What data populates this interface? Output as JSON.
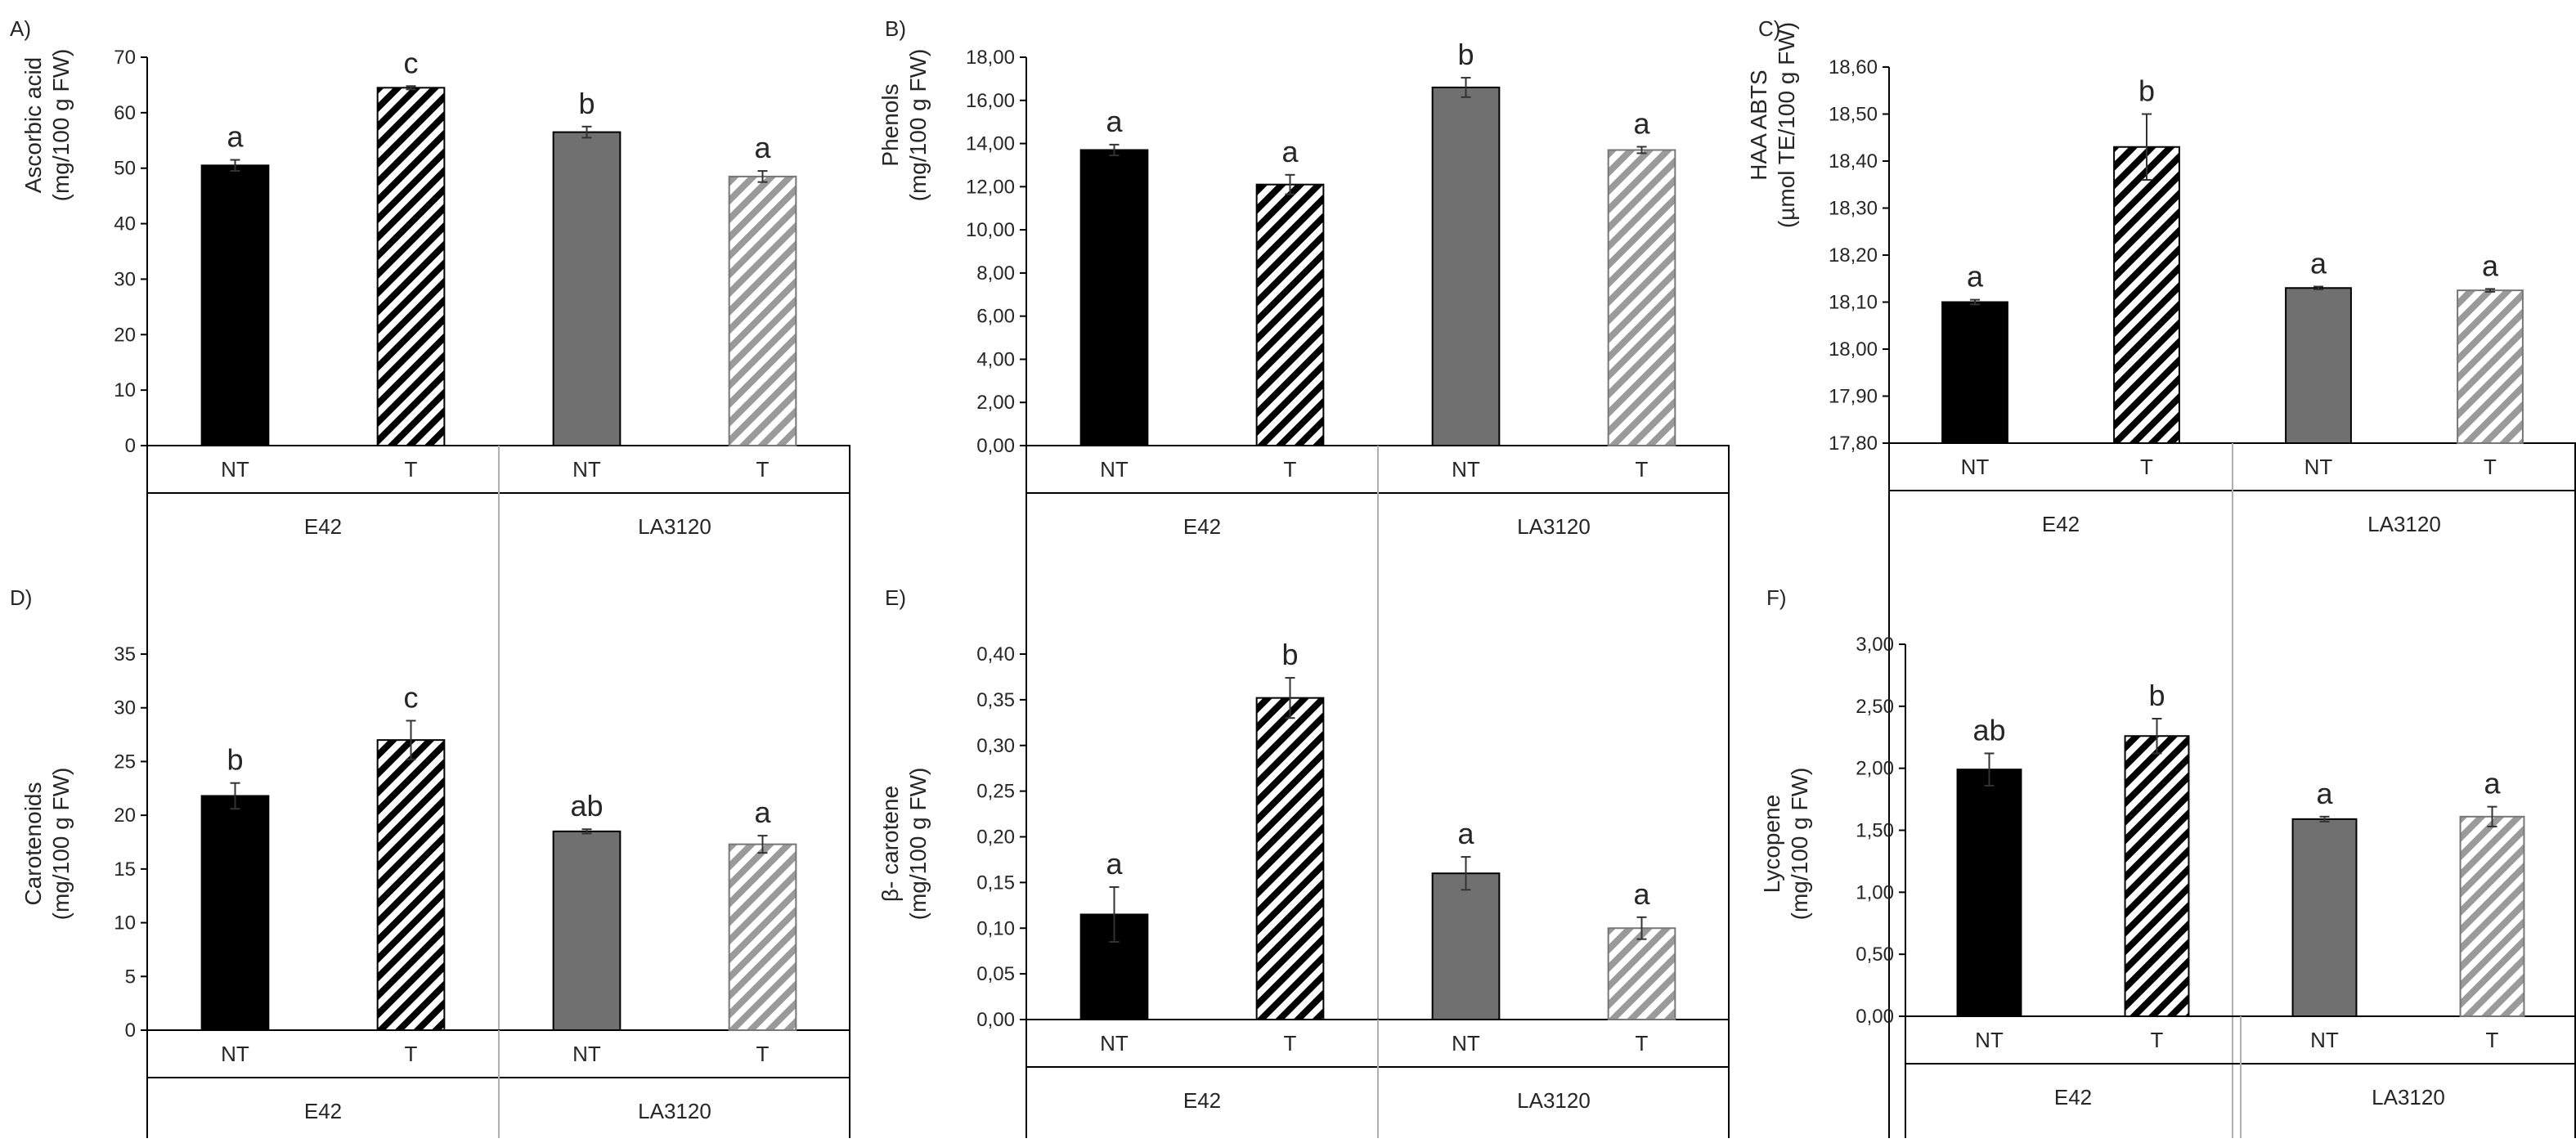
{
  "colors": {
    "e42_nt": "#000000",
    "e42_t_stripe": "#000000",
    "la_nt": "#707070",
    "la_t_stripe": "#9a9a9a",
    "axis": "#808080",
    "border": "#000000",
    "background": "#ffffff"
  },
  "chart_data": [
    {
      "panel": "A)",
      "type": "bar",
      "ylabel_lines": [
        "Ascorbic acid",
        "(mg/100 g FW)"
      ],
      "ylim": [
        0,
        70
      ],
      "yticks": [
        "0",
        "10",
        "20",
        "30",
        "40",
        "50",
        "60",
        "70"
      ],
      "groups": [
        "E42",
        "LA3120"
      ],
      "categories": [
        "NT",
        "T",
        "NT",
        "T"
      ],
      "values": [
        50.5,
        64.5,
        56.5,
        48.5
      ],
      "errors": [
        1.0,
        0.3,
        1.0,
        1.0
      ],
      "letters": [
        "a",
        "c",
        "b",
        "a"
      ]
    },
    {
      "panel": "B)",
      "type": "bar",
      "ylabel_lines": [
        "Phenols",
        "(mg/100 g FW)"
      ],
      "ylim": [
        0,
        18
      ],
      "yticks": [
        "0,00",
        "2,00",
        "4,00",
        "6,00",
        "8,00",
        "10,00",
        "12,00",
        "14,00",
        "16,00",
        "18,00"
      ],
      "groups": [
        "E42",
        "LA3120"
      ],
      "categories": [
        "NT",
        "T",
        "NT",
        "T"
      ],
      "values": [
        13.7,
        12.1,
        16.6,
        13.7
      ],
      "errors": [
        0.25,
        0.45,
        0.45,
        0.15
      ],
      "letters": [
        "a",
        "a",
        "b",
        "a"
      ]
    },
    {
      "panel": "C)",
      "type": "bar",
      "ylabel_lines": [
        "HAA ABTS",
        "(µmol TE/100 g FW)"
      ],
      "ylim": [
        17.8,
        18.6
      ],
      "yticks": [
        "17,80",
        "17,90",
        "18,00",
        "18,10",
        "18,20",
        "18,30",
        "18,40",
        "18,50",
        "18,60"
      ],
      "groups": [
        "E42",
        "LA3120"
      ],
      "categories": [
        "NT",
        "T",
        "NT",
        "T"
      ],
      "values": [
        18.1,
        18.43,
        18.13,
        18.125
      ],
      "errors": [
        0.005,
        0.07,
        0.003,
        0.003
      ],
      "letters": [
        "a",
        "b",
        "a",
        "a"
      ]
    },
    {
      "panel": "D)",
      "type": "bar",
      "ylabel_lines": [
        "Carotenoids",
        "(mg/100 g FW)"
      ],
      "ylim": [
        0,
        35
      ],
      "yticks": [
        "0",
        "5",
        "10",
        "15",
        "20",
        "25",
        "30",
        "35"
      ],
      "groups": [
        "E42",
        "LA3120"
      ],
      "categories": [
        "NT",
        "T",
        "NT",
        "T"
      ],
      "values": [
        21.8,
        27.0,
        18.5,
        17.3
      ],
      "errors": [
        1.2,
        1.8,
        0.2,
        0.8
      ],
      "letters": [
        "b",
        "c",
        "ab",
        "a"
      ]
    },
    {
      "panel": "E)",
      "type": "bar",
      "ylabel_lines": [
        "β- carotene",
        "(mg/100 g FW)"
      ],
      "ylim": [
        0,
        0.4
      ],
      "yticks": [
        "0,00",
        "0,05",
        "0,10",
        "0,15",
        "0,20",
        "0,25",
        "0,30",
        "0,35",
        "0,40"
      ],
      "groups": [
        "E42",
        "LA3120"
      ],
      "categories": [
        "NT",
        "T",
        "NT",
        "T"
      ],
      "values": [
        0.115,
        0.352,
        0.16,
        0.1
      ],
      "errors": [
        0.03,
        0.022,
        0.018,
        0.012
      ],
      "letters": [
        "a",
        "b",
        "a",
        "a"
      ]
    },
    {
      "panel": "F)",
      "type": "bar",
      "ylabel_lines": [
        "Lycopene",
        "(mg/100 g FW)"
      ],
      "ylim": [
        0,
        3
      ],
      "yticks": [
        "0,00",
        "0,50",
        "1,00",
        "1,50",
        "2,00",
        "2,50",
        "3,00"
      ],
      "groups": [
        "E42",
        "LA3120"
      ],
      "categories": [
        "NT",
        "T",
        "NT",
        "T"
      ],
      "values": [
        1.99,
        2.26,
        1.59,
        1.61
      ],
      "errors": [
        0.13,
        0.14,
        0.02,
        0.08
      ],
      "letters": [
        "ab",
        "b",
        "a",
        "a"
      ]
    }
  ]
}
